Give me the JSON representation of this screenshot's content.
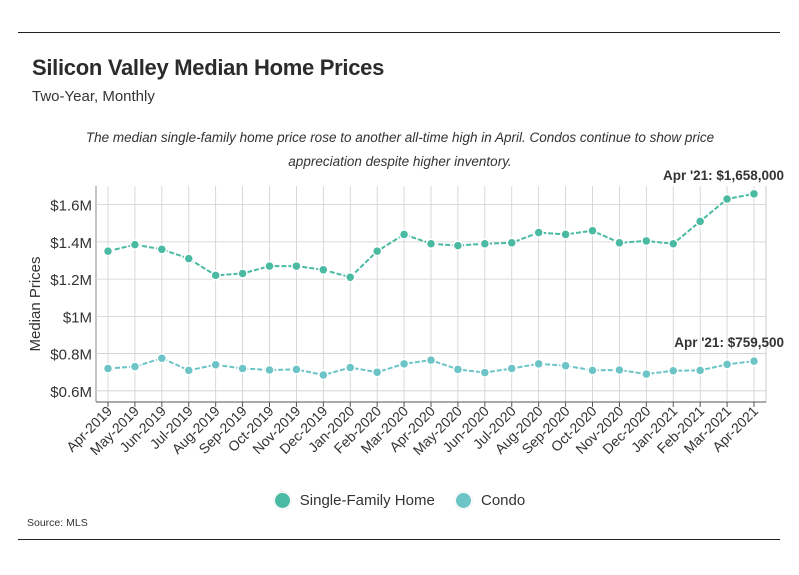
{
  "header": {
    "title": "Silicon Valley Median Home Prices",
    "subtitle": "Two-Year, Monthly",
    "note": "The median single-family home price rose to another all-time high in April. Condos continue to show price appreciation despite higher inventory."
  },
  "source": "Source:  MLS",
  "colors": {
    "single_family": "#4bbaa3",
    "condo": "#6cc4c6",
    "grid": "#cfcfcf",
    "axis": "#333333"
  },
  "chart_data": {
    "type": "line",
    "title": "Silicon Valley Median Home Prices",
    "subtitle": "Two-Year, Monthly",
    "ylabel": "Median Prices",
    "xlabel": "",
    "categories": [
      "Apr-2019",
      "May-2019",
      "Jun-2019",
      "Jul-2019",
      "Aug-2019",
      "Sep-2019",
      "Oct-2019",
      "Nov-2019",
      "Dec-2019",
      "Jan-2020",
      "Feb-2020",
      "Mar-2020",
      "Apr-2020",
      "May-2020",
      "Jun-2020",
      "Jul-2020",
      "Aug-2020",
      "Sep-2020",
      "Oct-2020",
      "Nov-2020",
      "Dec-2020",
      "Jan-2021",
      "Feb-2021",
      "Mar-2021",
      "Apr-2021"
    ],
    "ylim": [
      540000,
      1700000
    ],
    "y_ticks": [
      {
        "value": 600000,
        "label": "$0.6M"
      },
      {
        "value": 800000,
        "label": "$0.8M"
      },
      {
        "value": 1000000,
        "label": "$1M"
      },
      {
        "value": 1200000,
        "label": "$1.2M"
      },
      {
        "value": 1400000,
        "label": "$1.4M"
      },
      {
        "value": 1600000,
        "label": "$1.6M"
      }
    ],
    "grid": true,
    "legend_position": "bottom-center",
    "series": [
      {
        "name": "Single-Family Home",
        "color": "#4bbaa3",
        "values": [
          1350000,
          1385000,
          1360000,
          1310000,
          1220000,
          1230000,
          1270000,
          1270000,
          1250000,
          1210000,
          1350000,
          1440000,
          1390000,
          1380000,
          1390000,
          1395000,
          1450000,
          1440000,
          1460000,
          1395000,
          1405000,
          1390000,
          1510000,
          1630000,
          1658000
        ]
      },
      {
        "name": "Condo",
        "color": "#6cc4c6",
        "values": [
          720000,
          730000,
          775000,
          710000,
          740000,
          720000,
          712000,
          715000,
          685000,
          725000,
          700000,
          745000,
          765000,
          715000,
          698000,
          720000,
          745000,
          735000,
          710000,
          712000,
          690000,
          708000,
          710000,
          742000,
          759500
        ]
      }
    ],
    "annotations": [
      {
        "text": "Apr '21: $1,658,000",
        "series": 0,
        "index": 24
      },
      {
        "text": "Apr '21: $759,500",
        "series": 1,
        "index": 24
      }
    ]
  }
}
